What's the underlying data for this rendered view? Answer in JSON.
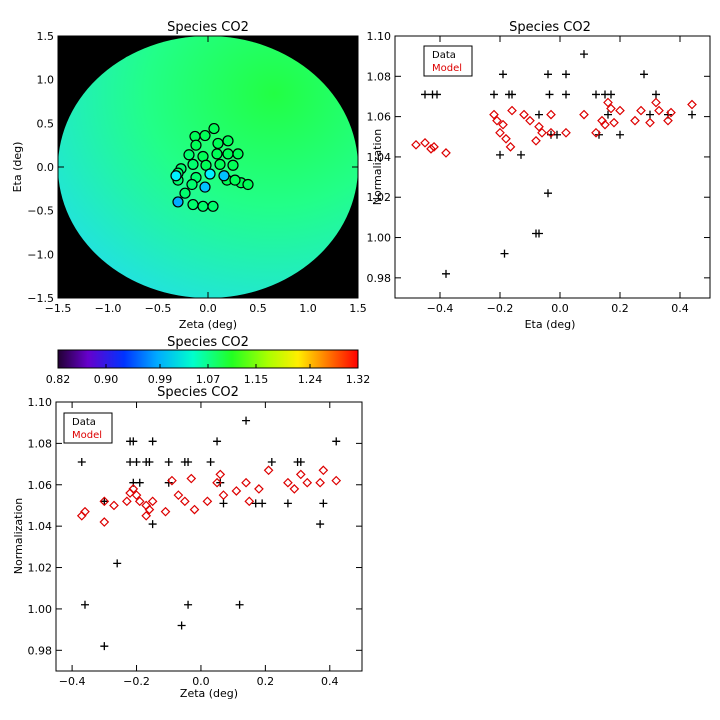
{
  "colors": {
    "data": "#000000",
    "model": "#dd0000",
    "axis": "#000000",
    "background": "#000000"
  },
  "map": {
    "title": "Species CO2",
    "xlabel": "Zeta (deg)",
    "ylabel": "Eta (deg)",
    "xlim": [
      -1.5,
      1.5
    ],
    "ylim": [
      -1.5,
      1.5
    ],
    "xticks": [
      -1.5,
      -1.0,
      -0.5,
      0.0,
      0.5,
      1.0,
      1.5
    ],
    "yticks": [
      -1.5,
      -1.0,
      -0.5,
      0.0,
      0.5,
      1.0,
      1.5
    ],
    "xtick_labels": [
      "−1.5",
      "−1.0",
      "−0.5",
      "0.0",
      "0.5",
      "1.0",
      "1.5"
    ],
    "ytick_labels": [
      "−1.5",
      "−1.0",
      "−0.5",
      "0.0",
      "0.5",
      "1.0",
      "1.5"
    ],
    "field_radius_deg": 1.5
  },
  "colorbar": {
    "title": "Species CO2",
    "min": 0.82,
    "max": 1.32,
    "tick_labels": [
      "0.82",
      "0.90",
      "0.99",
      "1.07",
      "1.15",
      "1.24",
      "1.32"
    ],
    "tick_values": [
      0.82,
      0.9,
      0.99,
      1.07,
      1.15,
      1.24,
      1.32
    ]
  },
  "legend": {
    "data_label": "Data",
    "model_label": "Model"
  },
  "chart_data": [
    {
      "type": "scatter",
      "title": "Species CO2",
      "xlabel": "Zeta (deg)",
      "ylabel": "Eta (deg)",
      "xlim": [
        -1.5,
        1.5
      ],
      "ylim": [
        -1.5,
        1.5
      ],
      "grid": false,
      "colormap": "rainbow",
      "color_range": [
        0.82,
        1.32
      ],
      "series": [
        {
          "points": [
            {
              "x": -0.13,
              "y": 0.35,
              "c": 1.06
            },
            {
              "x": -0.03,
              "y": 0.36,
              "c": 1.06
            },
            {
              "x": 0.06,
              "y": 0.44,
              "c": 1.06
            },
            {
              "x": 0.2,
              "y": 0.3,
              "c": 1.06
            },
            {
              "x": -0.12,
              "y": 0.25,
              "c": 1.06
            },
            {
              "x": 0.1,
              "y": 0.27,
              "c": 1.06
            },
            {
              "x": -0.19,
              "y": 0.14,
              "c": 1.05
            },
            {
              "x": -0.05,
              "y": 0.12,
              "c": 1.06
            },
            {
              "x": 0.09,
              "y": 0.15,
              "c": 1.06
            },
            {
              "x": 0.2,
              "y": 0.15,
              "c": 1.06
            },
            {
              "x": 0.3,
              "y": 0.15,
              "c": 1.06
            },
            {
              "x": -0.27,
              "y": -0.02,
              "c": 1.05
            },
            {
              "x": -0.15,
              "y": 0.03,
              "c": 1.05
            },
            {
              "x": -0.02,
              "y": 0.02,
              "c": 1.06
            },
            {
              "x": 0.12,
              "y": 0.03,
              "c": 1.06
            },
            {
              "x": 0.25,
              "y": 0.02,
              "c": 1.06
            },
            {
              "x": -0.3,
              "y": -0.07,
              "c": 1.05
            },
            {
              "x": -0.3,
              "y": -0.15,
              "c": 1.05
            },
            {
              "x": -0.12,
              "y": -0.12,
              "c": 1.05
            },
            {
              "x": -0.16,
              "y": -0.2,
              "c": 1.05
            },
            {
              "x": 0.02,
              "y": -0.08,
              "c": 0.98
            },
            {
              "x": 0.19,
              "y": -0.15,
              "c": 1.06
            },
            {
              "x": 0.33,
              "y": -0.18,
              "c": 1.06
            },
            {
              "x": 0.4,
              "y": -0.2,
              "c": 1.06
            },
            {
              "x": -0.32,
              "y": -0.1,
              "c": 0.98
            },
            {
              "x": -0.03,
              "y": -0.23,
              "c": 0.96
            },
            {
              "x": 0.16,
              "y": -0.1,
              "c": 0.96
            },
            {
              "x": -0.3,
              "y": -0.4,
              "c": 0.95
            },
            {
              "x": -0.15,
              "y": -0.43,
              "c": 1.05
            },
            {
              "x": -0.05,
              "y": -0.45,
              "c": 1.05
            },
            {
              "x": 0.05,
              "y": -0.45,
              "c": 1.05
            },
            {
              "x": 0.27,
              "y": -0.15,
              "c": 1.06
            },
            {
              "x": -0.23,
              "y": -0.3,
              "c": 1.05
            }
          ]
        }
      ]
    },
    {
      "type": "scatter",
      "title": "Species CO2",
      "xlabel": "Eta (deg)",
      "ylabel": "Normalization",
      "xlim": [
        -0.55,
        0.5
      ],
      "ylim": [
        0.97,
        1.1
      ],
      "xticks": [
        -0.4,
        -0.2,
        0.0,
        0.2,
        0.4
      ],
      "xtick_labels": [
        "−0.4",
        "−0.2",
        "0.0",
        "0.2",
        "0.4"
      ],
      "yticks": [
        0.98,
        1.0,
        1.02,
        1.04,
        1.06,
        1.08,
        1.1
      ],
      "ytick_labels": [
        "0.98",
        "1.00",
        "1.02",
        "1.04",
        "1.06",
        "1.08",
        "1.10"
      ],
      "grid": false,
      "legend": "top-left",
      "series": [
        {
          "name": "Data",
          "marker": "plus",
          "points": [
            [
              -0.45,
              1.071
            ],
            [
              -0.425,
              1.071
            ],
            [
              -0.41,
              1.071
            ],
            [
              -0.38,
              0.982
            ],
            [
              -0.22,
              1.071
            ],
            [
              -0.2,
              1.041
            ],
            [
              -0.19,
              1.081
            ],
            [
              -0.185,
              0.992
            ],
            [
              -0.17,
              1.071
            ],
            [
              -0.16,
              1.071
            ],
            [
              -0.13,
              1.041
            ],
            [
              -0.08,
              1.002
            ],
            [
              -0.07,
              1.002
            ],
            [
              -0.07,
              1.061
            ],
            [
              -0.04,
              1.022
            ],
            [
              -0.04,
              1.081
            ],
            [
              -0.035,
              1.071
            ],
            [
              -0.03,
              1.051
            ],
            [
              -0.01,
              1.051
            ],
            [
              0.02,
              1.081
            ],
            [
              0.02,
              1.071
            ],
            [
              0.08,
              1.091
            ],
            [
              0.12,
              1.071
            ],
            [
              0.13,
              1.051
            ],
            [
              0.15,
              1.071
            ],
            [
              0.16,
              1.061
            ],
            [
              0.17,
              1.071
            ],
            [
              0.2,
              1.051
            ],
            [
              0.28,
              1.081
            ],
            [
              0.3,
              1.061
            ],
            [
              0.32,
              1.071
            ],
            [
              0.36,
              1.061
            ],
            [
              0.44,
              1.061
            ]
          ]
        },
        {
          "name": "Model",
          "marker": "diamond",
          "points": [
            [
              -0.48,
              1.046
            ],
            [
              -0.45,
              1.047
            ],
            [
              -0.43,
              1.044
            ],
            [
              -0.42,
              1.045
            ],
            [
              -0.38,
              1.042
            ],
            [
              -0.22,
              1.061
            ],
            [
              -0.21,
              1.058
            ],
            [
              -0.2,
              1.052
            ],
            [
              -0.19,
              1.056
            ],
            [
              -0.18,
              1.049
            ],
            [
              -0.165,
              1.045
            ],
            [
              -0.16,
              1.063
            ],
            [
              -0.12,
              1.061
            ],
            [
              -0.1,
              1.058
            ],
            [
              -0.08,
              1.048
            ],
            [
              -0.07,
              1.055
            ],
            [
              -0.06,
              1.052
            ],
            [
              -0.03,
              1.052
            ],
            [
              -0.03,
              1.061
            ],
            [
              0.02,
              1.052
            ],
            [
              0.08,
              1.061
            ],
            [
              0.12,
              1.052
            ],
            [
              0.14,
              1.058
            ],
            [
              0.15,
              1.056
            ],
            [
              0.16,
              1.067
            ],
            [
              0.17,
              1.064
            ],
            [
              0.18,
              1.057
            ],
            [
              0.2,
              1.063
            ],
            [
              0.25,
              1.058
            ],
            [
              0.27,
              1.063
            ],
            [
              0.3,
              1.057
            ],
            [
              0.32,
              1.067
            ],
            [
              0.33,
              1.063
            ],
            [
              0.36,
              1.058
            ],
            [
              0.37,
              1.062
            ],
            [
              0.44,
              1.066
            ]
          ]
        }
      ]
    },
    {
      "type": "scatter",
      "title": "Species CO2",
      "xlabel": "Zeta (deg)",
      "ylabel": "Normalization",
      "xlim": [
        -0.45,
        0.5
      ],
      "ylim": [
        0.97,
        1.1
      ],
      "xticks": [
        -0.4,
        -0.2,
        0.0,
        0.2,
        0.4
      ],
      "xtick_labels": [
        "−0.4",
        "−0.2",
        "0.0",
        "0.2",
        "0.4"
      ],
      "yticks": [
        0.98,
        1.0,
        1.02,
        1.04,
        1.06,
        1.08,
        1.1
      ],
      "ytick_labels": [
        "0.98",
        "1.00",
        "1.02",
        "1.04",
        "1.06",
        "1.08",
        "1.10"
      ],
      "grid": false,
      "legend": "top-left",
      "series": [
        {
          "name": "Data",
          "marker": "plus",
          "points": [
            [
              -0.37,
              1.071
            ],
            [
              -0.36,
              1.002
            ],
            [
              -0.3,
              1.052
            ],
            [
              -0.3,
              0.982
            ],
            [
              -0.26,
              1.022
            ],
            [
              -0.22,
              1.081
            ],
            [
              -0.21,
              1.081
            ],
            [
              -0.22,
              1.071
            ],
            [
              -0.21,
              1.061
            ],
            [
              -0.2,
              1.071
            ],
            [
              -0.19,
              1.061
            ],
            [
              -0.17,
              1.071
            ],
            [
              -0.16,
              1.071
            ],
            [
              -0.15,
              1.081
            ],
            [
              -0.15,
              1.041
            ],
            [
              -0.1,
              1.061
            ],
            [
              -0.1,
              1.071
            ],
            [
              -0.06,
              0.992
            ],
            [
              -0.05,
              1.071
            ],
            [
              -0.04,
              1.002
            ],
            [
              -0.04,
              1.071
            ],
            [
              0.03,
              1.071
            ],
            [
              0.05,
              1.081
            ],
            [
              0.06,
              1.061
            ],
            [
              0.07,
              1.051
            ],
            [
              0.12,
              1.002
            ],
            [
              0.14,
              1.091
            ],
            [
              0.17,
              1.051
            ],
            [
              0.19,
              1.051
            ],
            [
              0.22,
              1.071
            ],
            [
              0.27,
              1.051
            ],
            [
              0.3,
              1.071
            ],
            [
              0.31,
              1.071
            ],
            [
              0.37,
              1.041
            ],
            [
              0.38,
              1.051
            ],
            [
              0.42,
              1.081
            ]
          ]
        },
        {
          "name": "Model",
          "marker": "diamond",
          "points": [
            [
              -0.37,
              1.045
            ],
            [
              -0.36,
              1.047
            ],
            [
              -0.3,
              1.052
            ],
            [
              -0.3,
              1.042
            ],
            [
              -0.27,
              1.05
            ],
            [
              -0.23,
              1.052
            ],
            [
              -0.22,
              1.056
            ],
            [
              -0.21,
              1.058
            ],
            [
              -0.2,
              1.055
            ],
            [
              -0.19,
              1.052
            ],
            [
              -0.17,
              1.05
            ],
            [
              -0.17,
              1.045
            ],
            [
              -0.16,
              1.048
            ],
            [
              -0.15,
              1.052
            ],
            [
              -0.11,
              1.047
            ],
            [
              -0.09,
              1.062
            ],
            [
              -0.07,
              1.055
            ],
            [
              -0.05,
              1.052
            ],
            [
              -0.03,
              1.063
            ],
            [
              -0.02,
              1.048
            ],
            [
              0.02,
              1.052
            ],
            [
              0.05,
              1.061
            ],
            [
              0.06,
              1.065
            ],
            [
              0.07,
              1.055
            ],
            [
              0.11,
              1.057
            ],
            [
              0.14,
              1.061
            ],
            [
              0.15,
              1.052
            ],
            [
              0.18,
              1.058
            ],
            [
              0.21,
              1.067
            ],
            [
              0.27,
              1.061
            ],
            [
              0.29,
              1.058
            ],
            [
              0.31,
              1.065
            ],
            [
              0.33,
              1.061
            ],
            [
              0.37,
              1.061
            ],
            [
              0.38,
              1.067
            ],
            [
              0.42,
              1.062
            ]
          ]
        }
      ]
    }
  ]
}
